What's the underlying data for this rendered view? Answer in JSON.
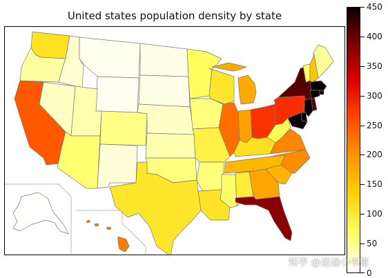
{
  "title": "United states population density by state",
  "colorbar": {
    "min": 0,
    "max": 450,
    "ticks": [
      "0",
      "50",
      "100",
      "150",
      "200",
      "250",
      "300",
      "350",
      "400",
      "450"
    ]
  },
  "watermark": "知乎 @迷途小书童",
  "chart_data": {
    "type": "choropleth",
    "title": "United states population density by state",
    "value_range": [
      0,
      450
    ],
    "colormap": "hot_r",
    "states": [
      {
        "name": "Washington",
        "value": 110
      },
      {
        "name": "Oregon",
        "value": 40
      },
      {
        "name": "California",
        "value": 250
      },
      {
        "name": "Nevada",
        "value": 25
      },
      {
        "name": "Idaho",
        "value": 20
      },
      {
        "name": "Montana",
        "value": 7
      },
      {
        "name": "Wyoming",
        "value": 6
      },
      {
        "name": "Utah",
        "value": 35
      },
      {
        "name": "Arizona",
        "value": 60
      },
      {
        "name": "Colorado",
        "value": 52
      },
      {
        "name": "New Mexico",
        "value": 17
      },
      {
        "name": "North Dakota",
        "value": 10
      },
      {
        "name": "South Dakota",
        "value": 11
      },
      {
        "name": "Nebraska",
        "value": 24
      },
      {
        "name": "Kansas",
        "value": 35
      },
      {
        "name": "Oklahoma",
        "value": 55
      },
      {
        "name": "Texas",
        "value": 105
      },
      {
        "name": "Minnesota",
        "value": 68
      },
      {
        "name": "Iowa",
        "value": 55
      },
      {
        "name": "Missouri",
        "value": 88
      },
      {
        "name": "Arkansas",
        "value": 57
      },
      {
        "name": "Louisiana",
        "value": 107
      },
      {
        "name": "Wisconsin",
        "value": 105
      },
      {
        "name": "Illinois",
        "value": 230
      },
      {
        "name": "Michigan",
        "value": 175
      },
      {
        "name": "Indiana",
        "value": 185
      },
      {
        "name": "Ohio",
        "value": 282
      },
      {
        "name": "Kentucky",
        "value": 112
      },
      {
        "name": "Tennessee",
        "value": 160
      },
      {
        "name": "Mississippi",
        "value": 63
      },
      {
        "name": "Alabama",
        "value": 95
      },
      {
        "name": "Georgia",
        "value": 180
      },
      {
        "name": "Florida",
        "value": 380
      },
      {
        "name": "South Carolina",
        "value": 165
      },
      {
        "name": "North Carolina",
        "value": 205
      },
      {
        "name": "Virginia",
        "value": 210
      },
      {
        "name": "West Virginia",
        "value": 75
      },
      {
        "name": "Pennsylvania",
        "value": 285
      },
      {
        "name": "New York",
        "value": 410
      },
      {
        "name": "Vermont",
        "value": 67
      },
      {
        "name": "New Hampshire",
        "value": 147
      },
      {
        "name": "Maine",
        "value": 43
      },
      {
        "name": "Massachusetts",
        "value": 850
      },
      {
        "name": "Rhode Island",
        "value": 1020
      },
      {
        "name": "Connecticut",
        "value": 740
      },
      {
        "name": "New Jersey",
        "value": 1200
      },
      {
        "name": "Delaware",
        "value": 470
      },
      {
        "name": "Maryland",
        "value": 610
      },
      {
        "name": "Alaska",
        "value": 1
      },
      {
        "name": "Hawaii",
        "value": 220
      }
    ]
  }
}
